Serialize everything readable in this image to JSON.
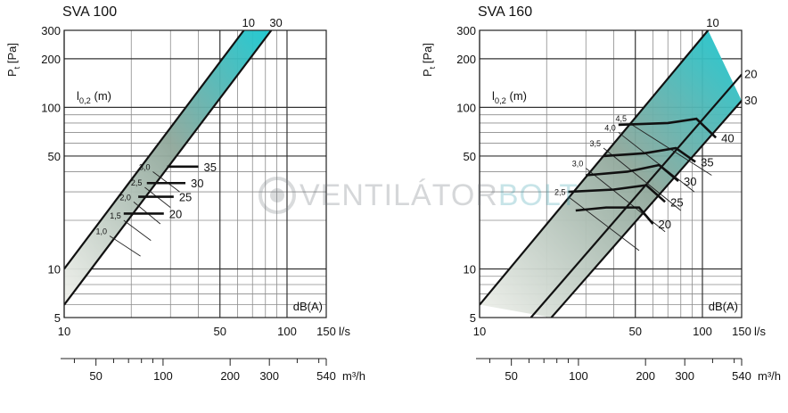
{
  "watermark": {
    "part1": "VENTILÁTOR",
    "part2": "BOLT"
  },
  "chart_data": [
    {
      "type": "line",
      "title": "SVA 100",
      "ylabel": "Pt [Pa]",
      "ylabel_main": "P",
      "ylabel_sub": "t",
      "ylabel_unit": "[Pa]",
      "xlabel": "l/s",
      "x2label": "m³/h",
      "throw_label": "l0,2 (m)",
      "throw_label_main": "l",
      "throw_label_sub": "0,2",
      "throw_label_unit": "(m)",
      "dba_label": "dB(A)",
      "x_scale": "log",
      "y_scale": "log",
      "xlim": [
        10,
        150
      ],
      "ylim": [
        5,
        300
      ],
      "x2lim": [
        36,
        540
      ],
      "x_ticks": [
        10,
        50,
        100,
        150
      ],
      "x2_ticks": [
        50,
        100,
        200,
        300,
        540
      ],
      "y_ticks": [
        5,
        10,
        50,
        100,
        200,
        300
      ],
      "grid": true,
      "colors": {
        "band_low": "#ecefe8",
        "band_high": "#18c7d0",
        "line": "#111111",
        "grid": "#8c8c8c"
      },
      "boundary_lines": [
        {
          "label": "10",
          "points": [
            [
              10,
              10
            ],
            [
              64,
              300
            ]
          ]
        },
        {
          "label": "30",
          "points": [
            [
              10,
              6
            ],
            [
              85,
              300
            ]
          ]
        }
      ],
      "throw_lines": [
        {
          "label": "1,0",
          "points": [
            [
              16,
              16
            ],
            [
              22,
              12
            ]
          ]
        },
        {
          "label": "1,5",
          "points": [
            [
              18.5,
              20
            ],
            [
              24.5,
              15
            ]
          ]
        },
        {
          "label": "2,0",
          "points": [
            [
              20.5,
              26
            ],
            [
              27,
              19
            ]
          ]
        },
        {
          "label": "2,5",
          "points": [
            [
              23,
              32
            ],
            [
              30,
              24
            ]
          ]
        },
        {
          "label": "3,0",
          "points": [
            [
              25,
              40
            ],
            [
              33,
              30
            ]
          ]
        }
      ],
      "sound_lines": [
        {
          "label": "20",
          "points": [
            [
              18.5,
              22
            ],
            [
              28,
              22
            ]
          ]
        },
        {
          "label": "25",
          "points": [
            [
              21.5,
              28
            ],
            [
              31,
              28
            ]
          ]
        },
        {
          "label": "30",
          "points": [
            [
              23.5,
              34
            ],
            [
              35,
              34
            ]
          ]
        },
        {
          "label": "35",
          "points": [
            [
              29,
              43
            ],
            [
              40,
              43
            ]
          ]
        }
      ]
    },
    {
      "type": "line",
      "title": "SVA 160",
      "ylabel": "Pt [Pa]",
      "ylabel_main": "P",
      "ylabel_sub": "t",
      "ylabel_unit": "[Pa]",
      "xlabel": "l/s",
      "x2label": "m³/h",
      "throw_label": "l0,2 (m)",
      "throw_label_main": "l",
      "throw_label_sub": "0,2",
      "throw_label_unit": "(m)",
      "dba_label": "dB(A)",
      "x_scale": "log",
      "y_scale": "log",
      "xlim": [
        10,
        150
      ],
      "ylim": [
        5,
        300
      ],
      "x2lim": [
        36,
        540
      ],
      "x_ticks": [
        10,
        50,
        100,
        150
      ],
      "x2_ticks": [
        50,
        100,
        200,
        300,
        540
      ],
      "y_ticks": [
        5,
        10,
        50,
        100,
        200,
        300
      ],
      "grid": true,
      "colors": {
        "band_low": "#ecefe8",
        "band_high": "#18c7d0",
        "line": "#111111",
        "grid": "#8c8c8c"
      },
      "boundary_lines": [
        {
          "label": "10",
          "points": [
            [
              10,
              6
            ],
            [
              106,
              300
            ]
          ]
        },
        {
          "label": "20",
          "points": [
            [
              17,
              5
            ],
            [
              150,
              160
            ]
          ]
        },
        {
          "label": "30",
          "points": [
            [
              21,
              5
            ],
            [
              150,
              110
            ]
          ]
        }
      ],
      "throw_lines": [
        {
          "label": "2,5",
          "points": [
            [
              25,
              28
            ],
            [
              52,
              13
            ]
          ]
        },
        {
          "label": "3,0",
          "points": [
            [
              30,
              42
            ],
            [
              68,
              17
            ]
          ]
        },
        {
          "label": "3,5",
          "points": [
            [
              36,
              56
            ],
            [
              80,
              23
            ]
          ]
        },
        {
          "label": "4,0",
          "points": [
            [
              42,
              70
            ],
            [
              92,
              30
            ]
          ]
        },
        {
          "label": "4,5",
          "points": [
            [
              47,
              80
            ],
            [
              110,
              38
            ]
          ]
        }
      ],
      "sound_lines": [
        {
          "label": "20",
          "points": [
            [
              27,
              23
            ],
            [
              37,
              24
            ],
            [
              52,
              24
            ],
            [
              60,
              19
            ]
          ]
        },
        {
          "label": "25",
          "points": [
            [
              25,
              30
            ],
            [
              40,
              31
            ],
            [
              56,
              33
            ],
            [
              68,
              26
            ]
          ]
        },
        {
          "label": "30",
          "points": [
            [
              30,
              38
            ],
            [
              46,
              40
            ],
            [
              64,
              44
            ],
            [
              78,
              35
            ]
          ]
        },
        {
          "label": "35",
          "points": [
            [
              36,
              50
            ],
            [
              55,
              52
            ],
            [
              76,
              56
            ],
            [
              93,
              46
            ]
          ]
        },
        {
          "label": "40",
          "points": [
            [
              42,
              78
            ],
            [
              70,
              80
            ],
            [
              94,
              85
            ],
            [
              115,
              65
            ]
          ]
        }
      ]
    }
  ]
}
